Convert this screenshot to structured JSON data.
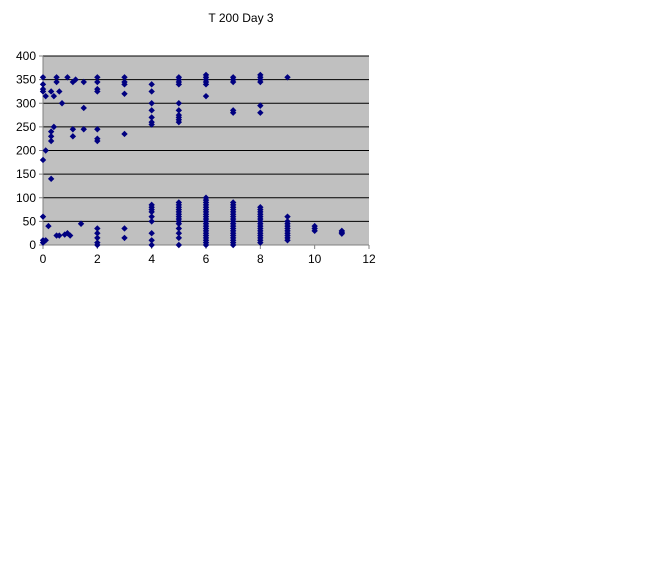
{
  "chart_data": {
    "type": "scatter",
    "title": "T 200 Day 3",
    "xlabel": "",
    "ylabel": "",
    "xlim": [
      0,
      12
    ],
    "ylim": [
      0,
      400
    ],
    "xticks": [
      0,
      2,
      4,
      6,
      8,
      10,
      12
    ],
    "yticks": [
      0,
      50,
      100,
      150,
      200,
      250,
      300,
      350,
      400
    ],
    "grid": "horizontal",
    "legend": "none",
    "plot_background": "#c0c0c0",
    "marker_color": "#000080",
    "marker": "diamond",
    "series": [
      {
        "points": [
          [
            0,
            355
          ],
          [
            0,
            340
          ],
          [
            0,
            330
          ],
          [
            0,
            325
          ],
          [
            0,
            180
          ],
          [
            0,
            60
          ],
          [
            0,
            10
          ],
          [
            0,
            5
          ],
          [
            0.1,
            315
          ],
          [
            0.1,
            200
          ],
          [
            0.1,
            10
          ],
          [
            0.2,
            40
          ],
          [
            0.3,
            325
          ],
          [
            0.3,
            240
          ],
          [
            0.3,
            230
          ],
          [
            0.3,
            220
          ],
          [
            0.3,
            140
          ],
          [
            0.4,
            315
          ],
          [
            0.4,
            250
          ],
          [
            0.5,
            355
          ],
          [
            0.5,
            345
          ],
          [
            0.5,
            20
          ],
          [
            0.6,
            325
          ],
          [
            0.6,
            20
          ],
          [
            0.7,
            300
          ],
          [
            0.8,
            22
          ],
          [
            0.9,
            355
          ],
          [
            0.9,
            25
          ],
          [
            1.0,
            20
          ],
          [
            1.1,
            345
          ],
          [
            1.1,
            245
          ],
          [
            1.1,
            230
          ],
          [
            1.2,
            350
          ],
          [
            1.4,
            45
          ],
          [
            1.5,
            345
          ],
          [
            1.5,
            290
          ],
          [
            1.5,
            245
          ],
          [
            2,
            355
          ],
          [
            2,
            345
          ],
          [
            2,
            330
          ],
          [
            2,
            325
          ],
          [
            2,
            245
          ],
          [
            2,
            225
          ],
          [
            2,
            220
          ],
          [
            2,
            35
          ],
          [
            2,
            25
          ],
          [
            2,
            15
          ],
          [
            2,
            5
          ],
          [
            2,
            0
          ],
          [
            3,
            355
          ],
          [
            3,
            345
          ],
          [
            3,
            340
          ],
          [
            3,
            320
          ],
          [
            3,
            235
          ],
          [
            3,
            35
          ],
          [
            3,
            15
          ],
          [
            4,
            340
          ],
          [
            4,
            325
          ],
          [
            4,
            300
          ],
          [
            4,
            285
          ],
          [
            4,
            270
          ],
          [
            4,
            260
          ],
          [
            4,
            255
          ],
          [
            4,
            85
          ],
          [
            4,
            80
          ],
          [
            4,
            75
          ],
          [
            4,
            70
          ],
          [
            4,
            60
          ],
          [
            4,
            50
          ],
          [
            4,
            25
          ],
          [
            4,
            10
          ],
          [
            4,
            0
          ],
          [
            5,
            355
          ],
          [
            5,
            350
          ],
          [
            5,
            345
          ],
          [
            5,
            340
          ],
          [
            5,
            300
          ],
          [
            5,
            285
          ],
          [
            5,
            275
          ],
          [
            5,
            270
          ],
          [
            5,
            265
          ],
          [
            5,
            260
          ],
          [
            5,
            90
          ],
          [
            5,
            85
          ],
          [
            5,
            80
          ],
          [
            5,
            75
          ],
          [
            5,
            70
          ],
          [
            5,
            65
          ],
          [
            5,
            60
          ],
          [
            5,
            55
          ],
          [
            5,
            50
          ],
          [
            5,
            45
          ],
          [
            5,
            35
          ],
          [
            5,
            25
          ],
          [
            5,
            15
          ],
          [
            5,
            0
          ],
          [
            6,
            360
          ],
          [
            6,
            355
          ],
          [
            6,
            350
          ],
          [
            6,
            345
          ],
          [
            6,
            340
          ],
          [
            6,
            315
          ],
          [
            6,
            100
          ],
          [
            6,
            95
          ],
          [
            6,
            90
          ],
          [
            6,
            85
          ],
          [
            6,
            80
          ],
          [
            6,
            75
          ],
          [
            6,
            70
          ],
          [
            6,
            65
          ],
          [
            6,
            60
          ],
          [
            6,
            55
          ],
          [
            6,
            50
          ],
          [
            6,
            45
          ],
          [
            6,
            40
          ],
          [
            6,
            35
          ],
          [
            6,
            30
          ],
          [
            6,
            25
          ],
          [
            6,
            20
          ],
          [
            6,
            15
          ],
          [
            6,
            10
          ],
          [
            6,
            5
          ],
          [
            6,
            0
          ],
          [
            7,
            355
          ],
          [
            7,
            350
          ],
          [
            7,
            345
          ],
          [
            7,
            285
          ],
          [
            7,
            280
          ],
          [
            7,
            90
          ],
          [
            7,
            85
          ],
          [
            7,
            80
          ],
          [
            7,
            75
          ],
          [
            7,
            70
          ],
          [
            7,
            65
          ],
          [
            7,
            60
          ],
          [
            7,
            55
          ],
          [
            7,
            50
          ],
          [
            7,
            45
          ],
          [
            7,
            40
          ],
          [
            7,
            35
          ],
          [
            7,
            30
          ],
          [
            7,
            25
          ],
          [
            7,
            20
          ],
          [
            7,
            15
          ],
          [
            7,
            10
          ],
          [
            7,
            5
          ],
          [
            7,
            0
          ],
          [
            8,
            360
          ],
          [
            8,
            355
          ],
          [
            8,
            350
          ],
          [
            8,
            345
          ],
          [
            8,
            295
          ],
          [
            8,
            280
          ],
          [
            8,
            80
          ],
          [
            8,
            75
          ],
          [
            8,
            70
          ],
          [
            8,
            65
          ],
          [
            8,
            60
          ],
          [
            8,
            55
          ],
          [
            8,
            50
          ],
          [
            8,
            45
          ],
          [
            8,
            40
          ],
          [
            8,
            35
          ],
          [
            8,
            30
          ],
          [
            8,
            25
          ],
          [
            8,
            20
          ],
          [
            8,
            15
          ],
          [
            8,
            10
          ],
          [
            8,
            5
          ],
          [
            9,
            355
          ],
          [
            9,
            60
          ],
          [
            9,
            50
          ],
          [
            9,
            45
          ],
          [
            9,
            40
          ],
          [
            9,
            35
          ],
          [
            9,
            30
          ],
          [
            9,
            25
          ],
          [
            9,
            20
          ],
          [
            9,
            15
          ],
          [
            9,
            10
          ],
          [
            10,
            40
          ],
          [
            10,
            35
          ],
          [
            10,
            30
          ],
          [
            11,
            30
          ],
          [
            11,
            27
          ],
          [
            11,
            24
          ]
        ]
      }
    ]
  }
}
